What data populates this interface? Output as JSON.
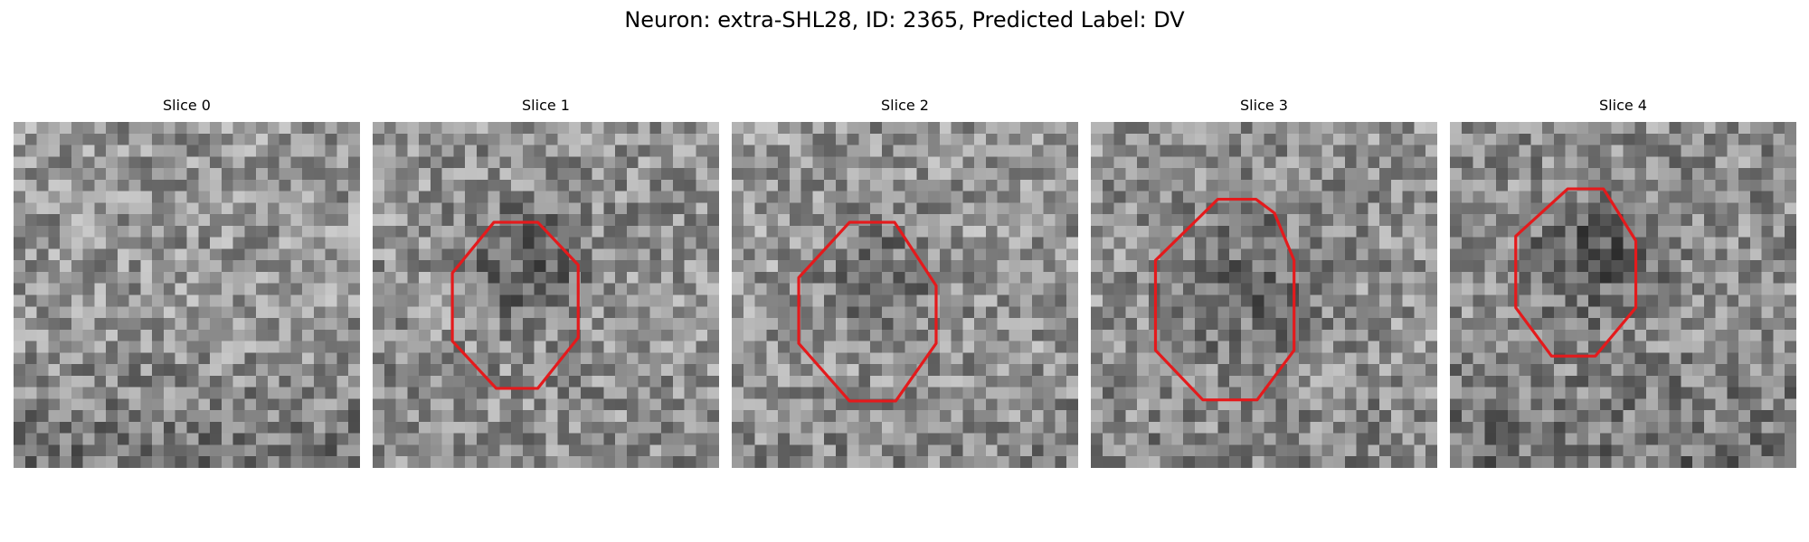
{
  "figure": {
    "title": "Neuron: extra-SHL28, ID: 2365, Predicted Label: DV"
  },
  "panels": [
    {
      "title": "Slice 0",
      "has_outline": false
    },
    {
      "title": "Slice 1",
      "has_outline": true
    },
    {
      "title": "Slice 2",
      "has_outline": true
    },
    {
      "title": "Slice 3",
      "has_outline": true
    },
    {
      "title": "Slice 4",
      "has_outline": true
    }
  ],
  "colors": {
    "outline": "#e41a1c",
    "background": "#ffffff"
  }
}
